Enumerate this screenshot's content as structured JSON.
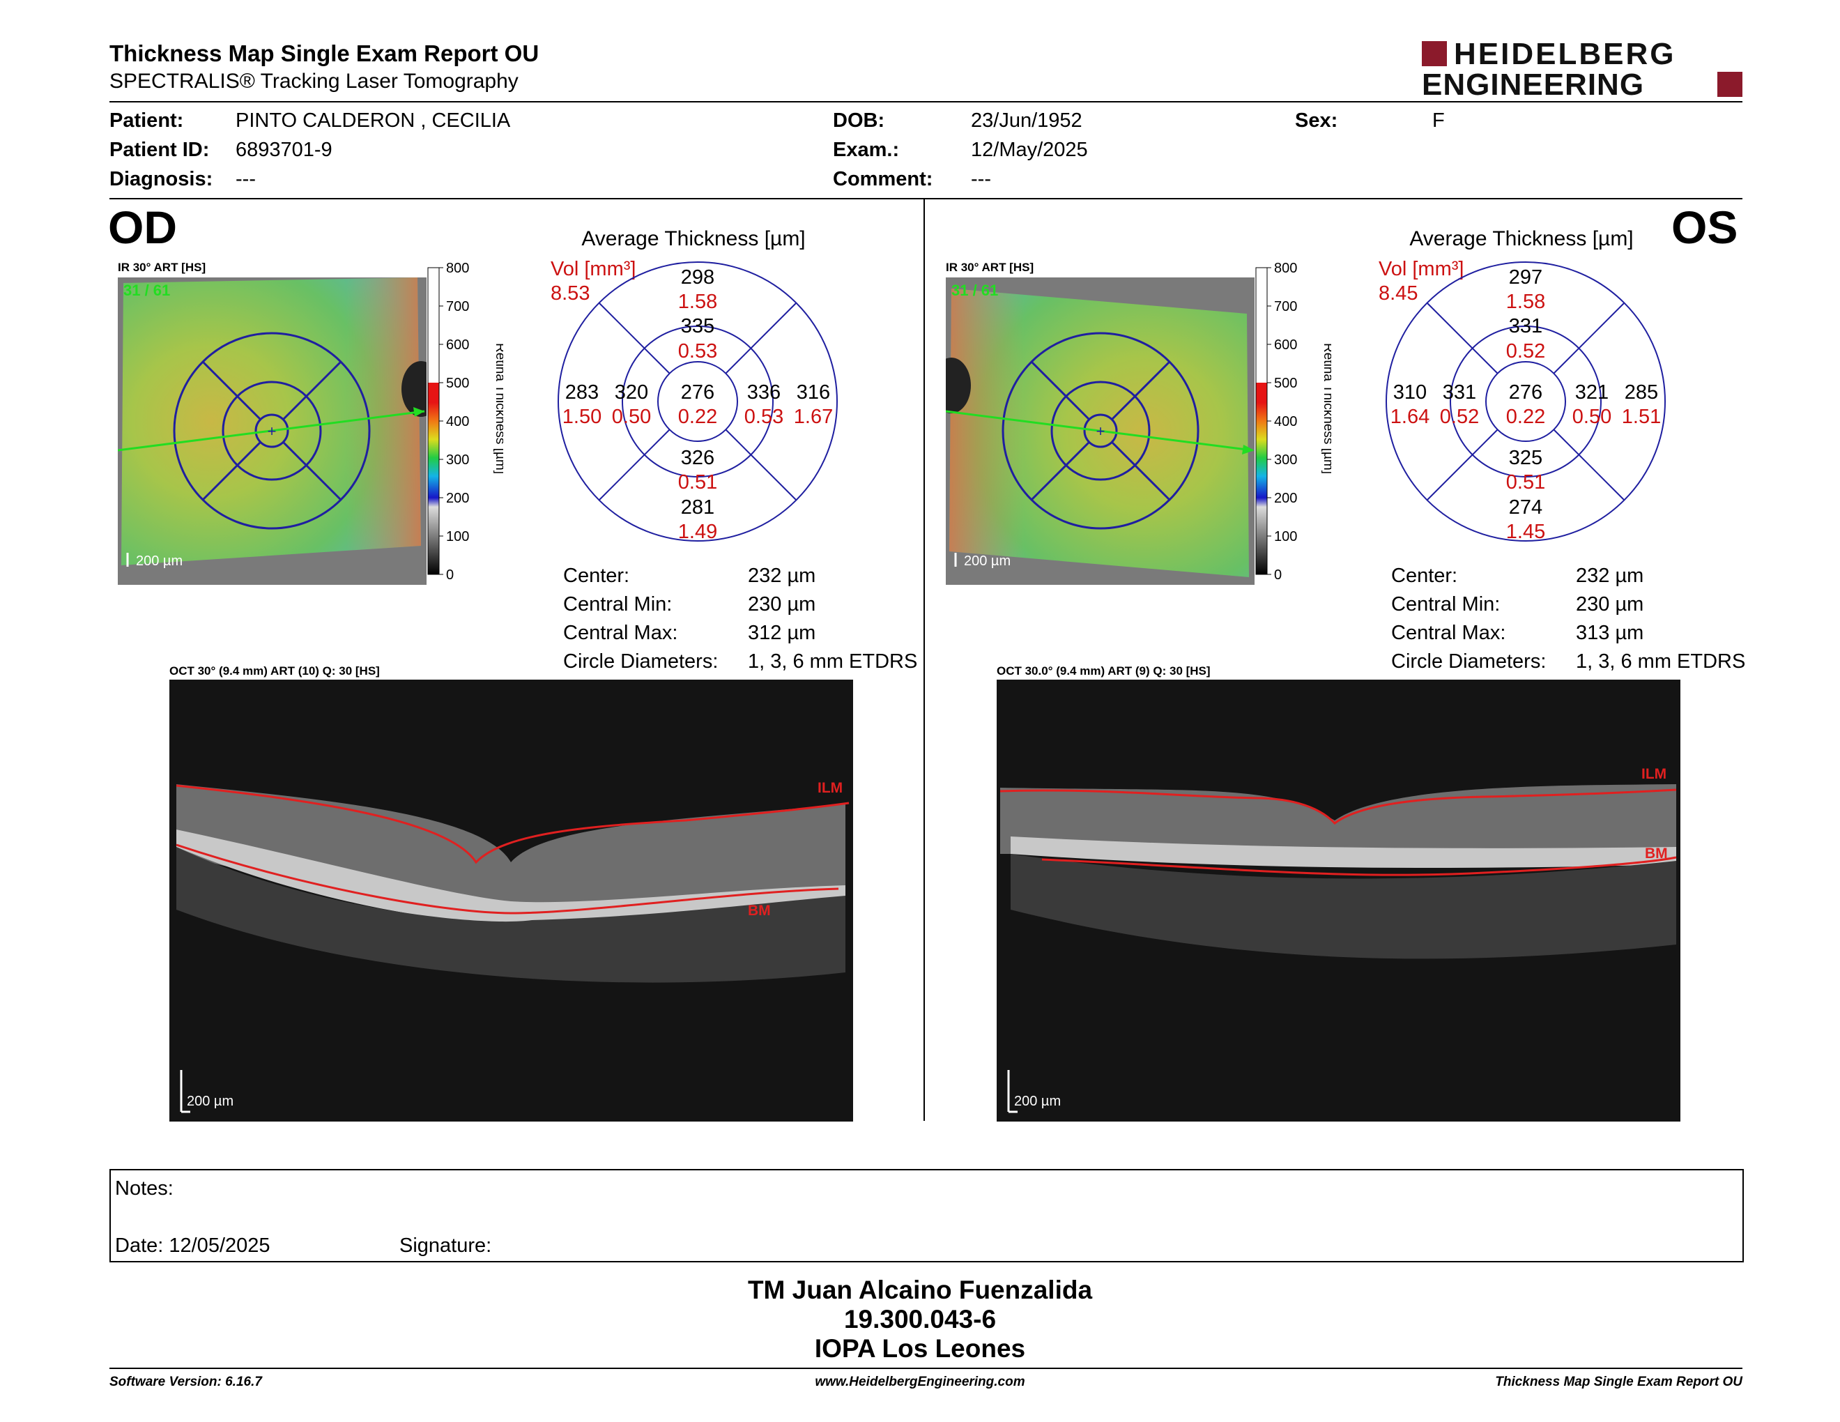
{
  "header": {
    "title": "Thickness Map Single Exam Report OU",
    "subtitle": "SPECTRALIS® Tracking Laser Tomography",
    "logo_line1": "HEIDELBERG",
    "logo_line2": "ENGINEERING",
    "brand_color": "#8b1a2b"
  },
  "patient": {
    "patient_label": "Patient:",
    "patient_value": "PINTO CALDERON , CECILIA",
    "id_label": "Patient ID:",
    "id_value": "6893701-9",
    "diagnosis_label": "Diagnosis:",
    "diagnosis_value": "---",
    "dob_label": "DOB:",
    "dob_value": "23/Jun/1952",
    "exam_label": "Exam.:",
    "exam_value": "12/May/2025",
    "comment_label": "Comment:",
    "comment_value": "---",
    "sex_label": "Sex:",
    "sex_value": "F"
  },
  "colorbar": {
    "ticks": [
      "800",
      "700",
      "600",
      "500",
      "400",
      "300",
      "200",
      "100",
      "0"
    ],
    "title": "Retina  Thickness [µm]"
  },
  "od": {
    "eye_label": "OD",
    "ir_label": "IR 30° ART [HS]",
    "frame_label": "31 / 61",
    "scale_label": "200 µm",
    "avg_title": "Average Thickness [µm]",
    "vol_label": "Vol [mm³]",
    "vol_value": "8.53",
    "sectors": {
      "center": {
        "t": "276",
        "v": "0.22"
      },
      "inner_sup": {
        "t": "335",
        "v": "0.53"
      },
      "inner_inf": {
        "t": "326",
        "v": "0.51"
      },
      "inner_left": {
        "t": "320",
        "v": "0.50"
      },
      "inner_right": {
        "t": "336",
        "v": "0.53"
      },
      "outer_sup": {
        "t": "298",
        "v": "1.58"
      },
      "outer_inf": {
        "t": "281",
        "v": "1.49"
      },
      "outer_left": {
        "t": "283",
        "v": "1.50"
      },
      "outer_right": {
        "t": "316",
        "v": "1.67"
      }
    },
    "stats": {
      "center_label": "Center:",
      "center_value": "232 µm",
      "min_label": "Central Min:",
      "min_value": "230 µm",
      "max_label": "Central Max:",
      "max_value": "312 µm",
      "diam_label": "Circle Diameters:",
      "diam_value": "1, 3, 6 mm ETDRS"
    },
    "oct_label": "OCT 30° (9.4 mm) ART (10) Q: 30 [HS]",
    "ilm": "ILM",
    "bm": "BM",
    "oct_scale": "200 µm"
  },
  "os": {
    "eye_label": "OS",
    "ir_label": "IR 30° ART [HS]",
    "frame_label": "31 / 61",
    "scale_label": "200 µm",
    "avg_title": "Average Thickness [µm]",
    "vol_label": "Vol [mm³]",
    "vol_value": "8.45",
    "sectors": {
      "center": {
        "t": "276",
        "v": "0.22"
      },
      "inner_sup": {
        "t": "331",
        "v": "0.52"
      },
      "inner_inf": {
        "t": "325",
        "v": "0.51"
      },
      "inner_left": {
        "t": "331",
        "v": "0.52"
      },
      "inner_right": {
        "t": "321",
        "v": "0.50"
      },
      "outer_sup": {
        "t": "297",
        "v": "1.58"
      },
      "outer_inf": {
        "t": "274",
        "v": "1.45"
      },
      "outer_left": {
        "t": "310",
        "v": "1.64"
      },
      "outer_right": {
        "t": "285",
        "v": "1.51"
      }
    },
    "stats": {
      "center_label": "Center:",
      "center_value": "232 µm",
      "min_label": "Central Min:",
      "min_value": "230 µm",
      "max_label": "Central Max:",
      "max_value": "313 µm",
      "diam_label": "Circle Diameters:",
      "diam_value": "1, 3, 6 mm ETDRS"
    },
    "oct_label": "OCT 30.0° (9.4 mm) ART (9) Q: 30 [HS]",
    "ilm": "ILM",
    "bm": "BM",
    "oct_scale": "200 µm"
  },
  "notes": {
    "notes_label": "Notes:",
    "date_label": "Date: 12/05/2025",
    "signature_label": "Signature:"
  },
  "signatory": {
    "name": "TM Juan Alcaino Fuenzalida",
    "id": "19.300.043-6",
    "org": "IOPA Los Leones"
  },
  "footer": {
    "software": "Software Version: 6.16.7",
    "website": "www.HeidelbergEngineering.com",
    "report": "Thickness Map Single Exam Report OU"
  }
}
